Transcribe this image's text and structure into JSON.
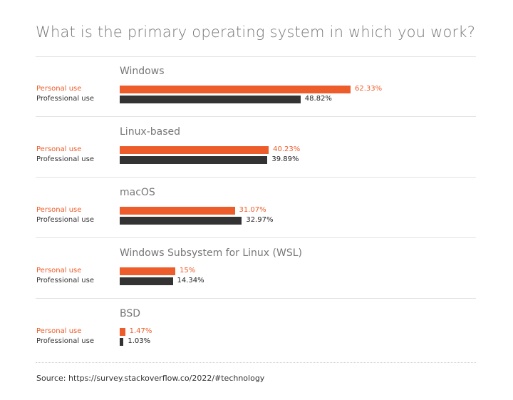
{
  "chart_data": {
    "type": "bar",
    "orientation": "horizontal",
    "title": "What is the primary operating system in which you work?",
    "categories": [
      "Windows",
      "Linux-based",
      "macOS",
      "Windows Subsystem for Linux (WSL)",
      "BSD"
    ],
    "series": [
      {
        "name": "Personal use",
        "color": "#ec5d2b",
        "values": [
          62.33,
          40.23,
          31.07,
          15,
          1.47
        ],
        "labels": [
          "62.33%",
          "40.23%",
          "31.07%",
          "15%",
          "1.47%"
        ]
      },
      {
        "name": "Professional use",
        "color": "#333333",
        "values": [
          48.82,
          39.89,
          32.97,
          14.34,
          1.03
        ],
        "labels": [
          "48.82%",
          "39.89%",
          "32.97%",
          "14.34%",
          "1.03%"
        ]
      }
    ],
    "xlim": [
      0,
      100
    ],
    "source": "Source: https://survey.stackoverflow.co/2022/#technology"
  }
}
